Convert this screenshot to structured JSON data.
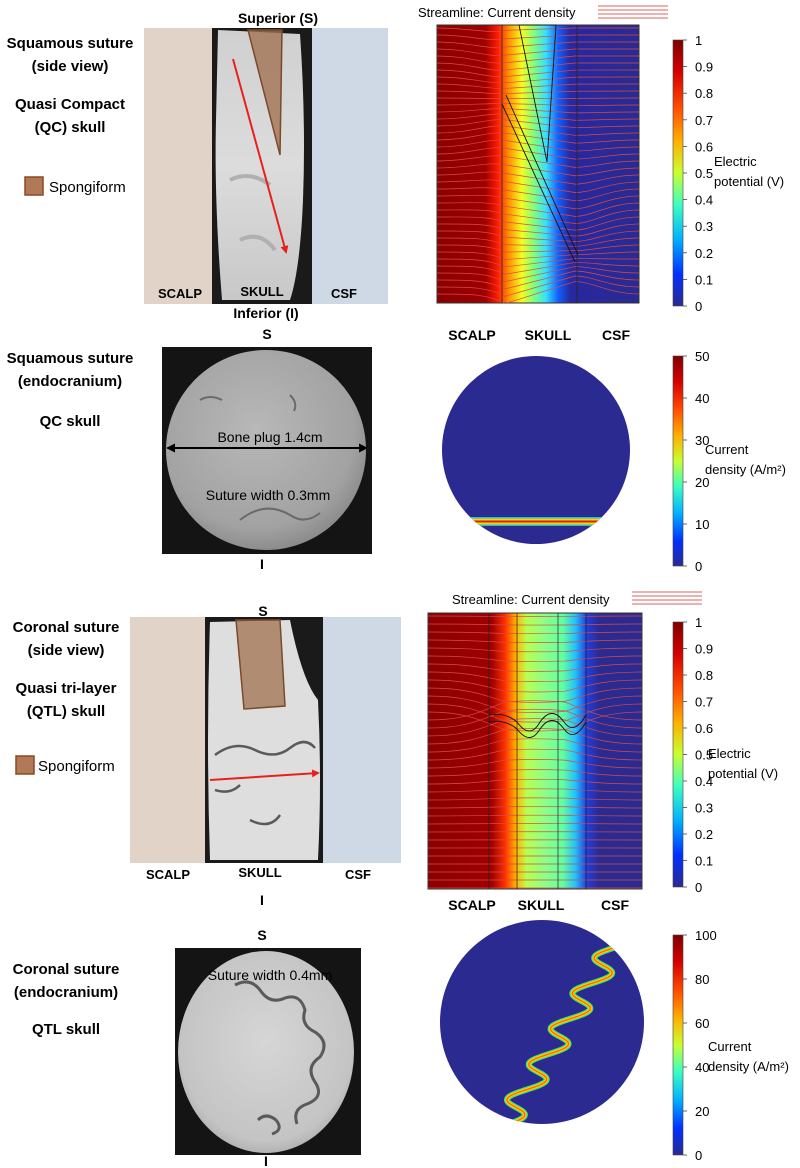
{
  "panel1": {
    "title_line1": "Squamous suture",
    "title_line2": "(side view)",
    "skull_line1": "Quasi Compact",
    "skull_line2": "(QC) skull",
    "legend_label": "Spongiform",
    "top_label": "Superior (S)",
    "bottom_label": "Inferior (I)",
    "layers": [
      "SCALP",
      "SKULL",
      "CSF"
    ],
    "sim_legend": "Streamline: Current density",
    "sim_layers": [
      "SCALP",
      "SKULL",
      "CSF"
    ],
    "colorbar": {
      "ticks": [
        "1",
        "0.9",
        "0.8",
        "0.7",
        "0.6",
        "0.5",
        "0.4",
        "0.3",
        "0.2",
        "0.1",
        "0"
      ],
      "label_line1": "Electric",
      "label_line2": "potential (V)"
    }
  },
  "panel2": {
    "title_line1": "Squamous suture",
    "title_line2": "(endocranium)",
    "skull": "QC skull",
    "top_label": "S",
    "bottom_label": "I",
    "bone_plug": "Bone plug 1.4cm",
    "suture_width": "Suture width 0.3mm",
    "colorbar": {
      "ticks": [
        "50",
        "40",
        "30",
        "20",
        "10",
        "0"
      ],
      "label_line1": "Current",
      "label_line2": "density (A/m²)"
    }
  },
  "panel3": {
    "title_line1": "Coronal suture",
    "title_line2": "(side view)",
    "skull_line1": "Quasi tri-layer",
    "skull_line2": "(QTL) skull",
    "legend_label": "Spongiform",
    "top_label": "S",
    "bottom_label": "I",
    "layers": [
      "SCALP",
      "SKULL",
      "CSF"
    ],
    "sim_legend": "Streamline: Current density",
    "sim_layers": [
      "SCALP",
      "SKULL",
      "CSF"
    ],
    "colorbar": {
      "ticks": [
        "1",
        "0.9",
        "0.8",
        "0.7",
        "0.6",
        "0.5",
        "0.4",
        "0.3",
        "0.2",
        "0.1",
        "0"
      ],
      "label_line1": "Electric",
      "label_line2": "potential (V)"
    }
  },
  "panel4": {
    "title_line1": "Coronal suture",
    "title_line2": "(endocranium)",
    "skull": "QTL skull",
    "top_label": "S",
    "bottom_label": "I",
    "suture_width": "Suture width 0.4mm",
    "colorbar": {
      "ticks": [
        "100",
        "80",
        "60",
        "40",
        "20",
        "0"
      ],
      "label_line1": "Current",
      "label_line2": "density (A/m²)"
    }
  },
  "colors": {
    "scalp": "#e2d3c9",
    "csf": "#cfd9e6",
    "spongiform": "#a0704f",
    "arrow": "#e8201c",
    "streamline": "#d94a4a",
    "field_blue": "#2a2a90"
  }
}
